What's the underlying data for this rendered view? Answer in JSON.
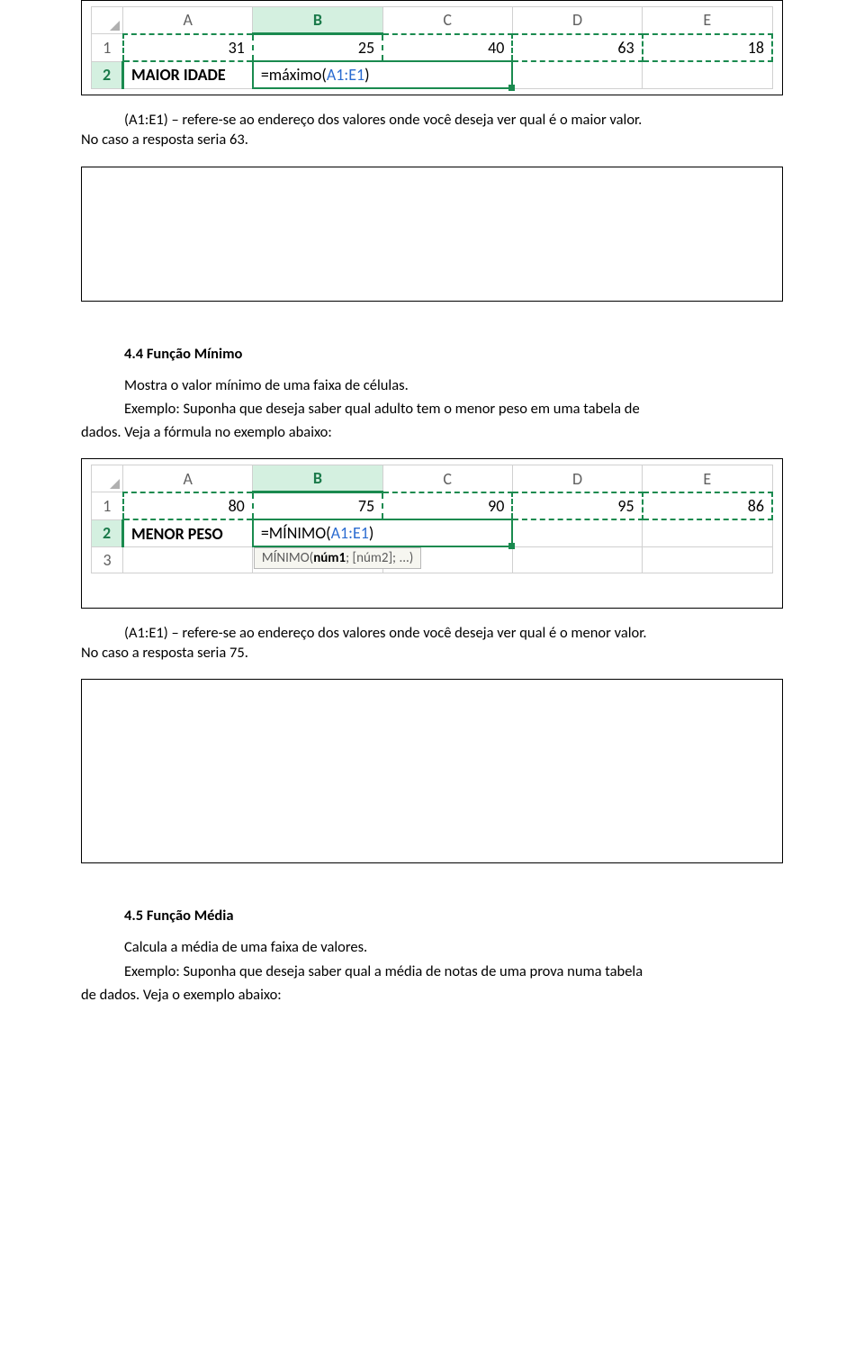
{
  "excel1": {
    "cols": [
      "A",
      "B",
      "C",
      "D",
      "E"
    ],
    "selected_col": "B",
    "rows": [
      {
        "hdr": "1",
        "cells": [
          "31",
          "25",
          "40",
          "63",
          "18"
        ],
        "dashed": true
      },
      {
        "hdr": "2",
        "selected": true,
        "label": "MAIOR IDADE",
        "formula_pre": "=máximo(",
        "formula_ref": "A1:E1",
        "formula_post": ")"
      }
    ]
  },
  "text1a": "(A1:E1) – refere-se ao endereço dos valores onde você deseja ver qual é o maior valor.",
  "text1b": "No caso a resposta seria 63.",
  "section44_title": "4.4 Função Mínimo",
  "section44_p1": "Mostra o valor mínimo de uma faixa de células.",
  "section44_p2a": "Exemplo: Suponha que deseja saber qual adulto tem o menor peso em uma tabela de",
  "section44_p2b": "dados. Veja a fórmula no exemplo abaixo:",
  "excel2": {
    "cols": [
      "A",
      "B",
      "C",
      "D",
      "E"
    ],
    "selected_col": "B",
    "rows": [
      {
        "hdr": "1",
        "cells": [
          "80",
          "75",
          "90",
          "95",
          "86"
        ],
        "dashed": true
      },
      {
        "hdr": "2",
        "selected": true,
        "label": "MENOR PESO",
        "formula_pre": "=MÍNIMO(",
        "formula_ref": "A1:E1",
        "formula_post": ")",
        "tooltip_pre": "MÍNIMO(",
        "tooltip_bold": "núm1",
        "tooltip_post": "; [núm2]; ...)"
      },
      {
        "hdr": "3",
        "cells": [
          "",
          "",
          "",
          "",
          ""
        ]
      }
    ]
  },
  "text2a": "(A1:E1) – refere-se ao endereço dos valores onde você deseja ver qual é o menor valor.",
  "text2b": "No caso a resposta seria 75.",
  "section45_title": "4.5 Função Média",
  "section45_p1": "Calcula a média de uma faixa de valores.",
  "section45_p2a": "Exemplo: Suponha que deseja saber qual a média de notas de uma prova numa tabela",
  "section45_p2b": "de dados. Veja o exemplo abaixo:",
  "colors": {
    "sel_green": "#1a8a4f",
    "sel_bg": "#d4f0e0",
    "ref_blue": "#2a6bd0",
    "grid": "#d0d0d0"
  }
}
